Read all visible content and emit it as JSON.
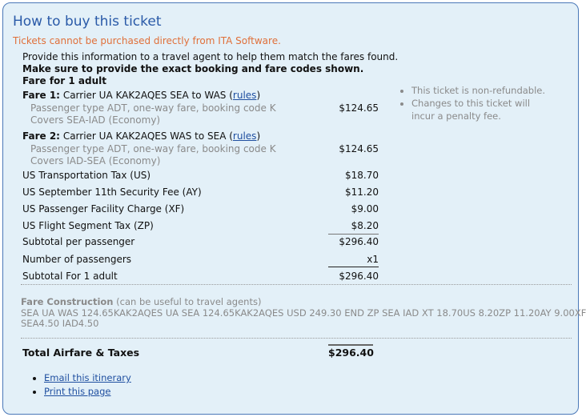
{
  "title": "How to buy this ticket",
  "warning": "Tickets cannot be purchased directly from ITA Software.",
  "intro": "Provide this information to a travel agent to help them match the fares found.",
  "emphasis": "Make sure to provide the exact booking and fare codes shown.",
  "fare_for": "Fare for 1 adult",
  "fares": [
    {
      "label": "Fare 1:",
      "desc": "Carrier UA KAK2AQES SEA to WAS (",
      "rules": "rules",
      "close": ")",
      "line1": "Passenger type ADT, one-way fare, booking code K",
      "line2": "Covers SEA-IAD (Economy)",
      "amount": "$124.65"
    },
    {
      "label": "Fare 2:",
      "desc": "Carrier UA KAK2AQES WAS to SEA (",
      "rules": "rules",
      "close": ")",
      "line1": "Passenger type ADT, one-way fare, booking code K",
      "line2": "Covers IAD-SEA (Economy)",
      "amount": "$124.65"
    }
  ],
  "taxes": [
    {
      "label": "US Transportation Tax (US)",
      "amount": "$18.70"
    },
    {
      "label": "US September 11th Security Fee (AY)",
      "amount": "$11.20"
    },
    {
      "label": "US Passenger Facility Charge (XF)",
      "amount": "$9.00"
    },
    {
      "label": "US Flight Segment Tax (ZP)",
      "amount": "$8.20"
    }
  ],
  "subtotal_per_passenger": {
    "label": "Subtotal per passenger",
    "amount": "$296.40"
  },
  "passengers": {
    "label": "Number of passengers",
    "amount": "x1"
  },
  "subtotal_adult": {
    "label": "Subtotal For 1 adult",
    "amount": "$296.40"
  },
  "notes": [
    "This ticket is non-refundable.",
    "Changes to this ticket will incur a penalty fee."
  ],
  "fare_construction": {
    "heading": "Fare Construction",
    "hint": "(can be useful to travel agents)",
    "line1": "SEA UA WAS 124.65KAK2AQES UA SEA 124.65KAK2AQES USD 249.30 END ZP SEA IAD XT 18.70US 8.20ZP 11.20AY 9.00XF",
    "line2": "SEA4.50 IAD4.50"
  },
  "total": {
    "label": "Total Airfare & Taxes",
    "amount": "$296.40"
  },
  "links": [
    "Email this itinerary",
    "Print this page"
  ]
}
